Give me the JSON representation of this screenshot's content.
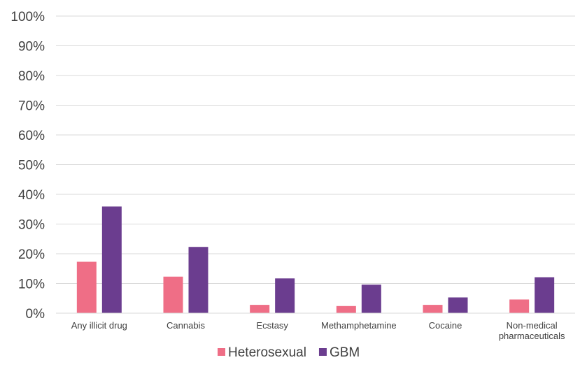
{
  "chart_data": {
    "type": "bar",
    "categories": [
      [
        "Any illicit drug"
      ],
      [
        "Cannabis"
      ],
      [
        "Ecstasy"
      ],
      [
        "Methamphetamine"
      ],
      [
        "Cocaine"
      ],
      [
        "Non-medical",
        "pharmaceuticals"
      ]
    ],
    "series": [
      {
        "name": "Heterosexual",
        "color": "#ef6e86",
        "values": [
          17.3,
          12.3,
          2.8,
          2.4,
          2.8,
          4.6
        ]
      },
      {
        "name": "GBM",
        "color": "#6b3d8f",
        "values": [
          35.9,
          22.3,
          11.7,
          9.6,
          5.3,
          12.1
        ]
      }
    ],
    "ylim": [
      0,
      100
    ],
    "yticks": [
      0,
      10,
      20,
      30,
      40,
      50,
      60,
      70,
      80,
      90,
      100
    ],
    "ytick_labels": [
      "0%",
      "10%",
      "20%",
      "30%",
      "40%",
      "50%",
      "60%",
      "70%",
      "80%",
      "90%",
      "100%"
    ],
    "grid": true,
    "legend_position": "bottom",
    "title": "",
    "xlabel": "",
    "ylabel": ""
  }
}
